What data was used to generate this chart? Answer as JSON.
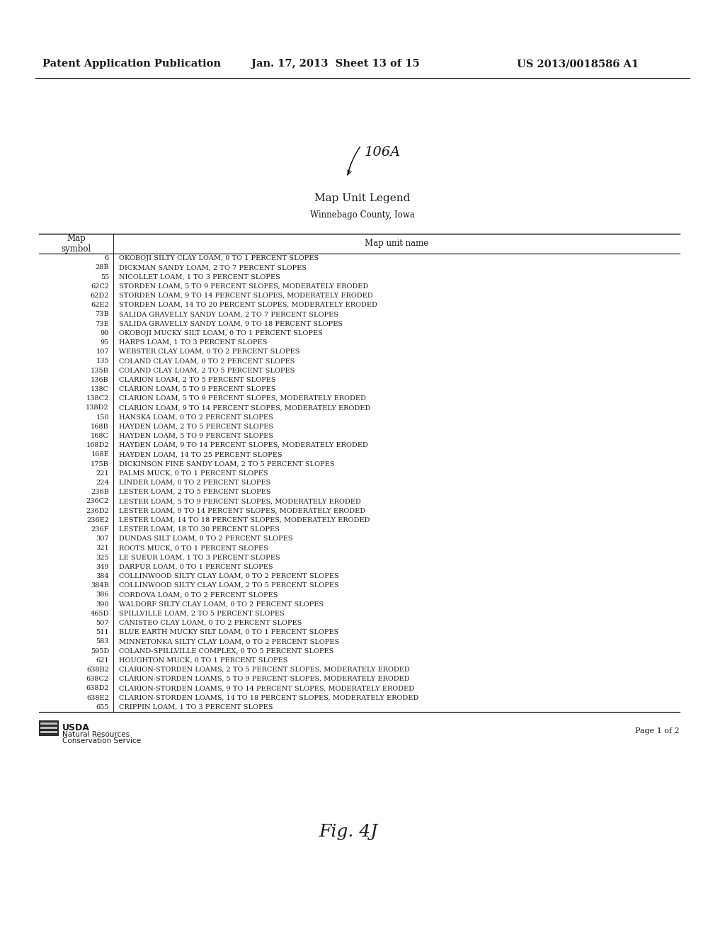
{
  "header_left": "Patent Application Publication",
  "header_middle": "Jan. 17, 2013  Sheet 13 of 15",
  "header_right": "US 2013/0018586 A1",
  "label_106A": "106A",
  "title": "Map Unit Legend",
  "subtitle": "Winnebago County, Iowa",
  "col1_header": "Map\nsymbol",
  "col2_header": "Map unit name",
  "table_data": [
    [
      "6",
      "OKOBOJI SILTY CLAY LOAM, 0 TO 1 PERCENT SLOPES"
    ],
    [
      "28B",
      "DICKMAN SANDY LOAM, 2 TO 7 PERCENT SLOPES"
    ],
    [
      "55",
      "NICOLLET LOAM, 1 TO 3 PERCENT SLOPES"
    ],
    [
      "62C2",
      "STORDEN LOAM, 5 TO 9 PERCENT SLOPES, MODERATELY ERODED"
    ],
    [
      "62D2",
      "STORDEN LOAM, 9 TO 14 PERCENT SLOPES, MODERATELY ERODED"
    ],
    [
      "62E2",
      "STORDEN LOAM, 14 TO 20 PERCENT SLOPES, MODERATELY ERODED"
    ],
    [
      "73B",
      "SALIDA GRAVELLY SANDY LOAM, 2 TO 7 PERCENT SLOPES"
    ],
    [
      "73E",
      "SALIDA GRAVELLY SANDY LOAM, 9 TO 18 PERCENT SLOPES"
    ],
    [
      "90",
      "OKOBOJI MUCKY SILT LOAM, 0 TO 1 PERCENT SLOPES"
    ],
    [
      "95",
      "HARPS LOAM, 1 TO 3 PERCENT SLOPES"
    ],
    [
      "107",
      "WEBSTER CLAY LOAM, 0 TO 2 PERCENT SLOPES"
    ],
    [
      "135",
      "COLAND CLAY LOAM, 0 TO 2 PERCENT SLOPES"
    ],
    [
      "135B",
      "COLAND CLAY LOAM, 2 TO 5 PERCENT SLOPES"
    ],
    [
      "136B",
      "CLARION LOAM, 2 TO 5 PERCENT SLOPES"
    ],
    [
      "138C",
      "CLARION LOAM, 5 TO 9 PERCENT SLOPES"
    ],
    [
      "138C2",
      "CLARION LOAM, 5 TO 9 PERCENT SLOPES, MODERATELY ERODED"
    ],
    [
      "138D2",
      "CLARION LOAM, 9 TO 14 PERCENT SLOPES, MODERATELY ERODED"
    ],
    [
      "150",
      "HANSKA LOAM, 0 TO 2 PERCENT SLOPES"
    ],
    [
      "168B",
      "HAYDEN LOAM, 2 TO 5 PERCENT SLOPES"
    ],
    [
      "168C",
      "HAYDEN LOAM, 5 TO 9 PERCENT SLOPES"
    ],
    [
      "168D2",
      "HAYDEN LOAM, 9 TO 14 PERCENT SLOPES, MODERATELY ERODED"
    ],
    [
      "168E",
      "HAYDEN LOAM, 14 TO 25 PERCENT SLOPES"
    ],
    [
      "175B",
      "DICKINSON FINE SANDY LOAM, 2 TO 5 PERCENT SLOPES"
    ],
    [
      "221",
      "PALMS MUCK, 0 TO 1 PERCENT SLOPES"
    ],
    [
      "224",
      "LINDER LOAM, 0 TO 2 PERCENT SLOPES"
    ],
    [
      "236B",
      "LESTER LOAM, 2 TO 5 PERCENT SLOPES"
    ],
    [
      "236C2",
      "LESTER LOAM, 5 TO 9 PERCENT SLOPES, MODERATELY ERODED"
    ],
    [
      "236D2",
      "LESTER LOAM, 9 TO 14 PERCENT SLOPES, MODERATELY ERODED"
    ],
    [
      "236E2",
      "LESTER LOAM, 14 TO 18 PERCENT SLOPES, MODERATELY ERODED"
    ],
    [
      "236F",
      "LESTER LOAM, 18 TO 30 PERCENT SLOPES"
    ],
    [
      "307",
      "DUNDAS SILT LOAM, 0 TO 2 PERCENT SLOPES"
    ],
    [
      "321",
      "ROOTS MUCK, 0 TO 1 PERCENT SLOPES"
    ],
    [
      "325",
      "LE SUEUR LOAM, 1 TO 3 PERCENT SLOPES"
    ],
    [
      "349",
      "DARFUR LOAM, 0 TO 1 PERCENT SLOPES"
    ],
    [
      "384",
      "COLLINWOOD SILTY CLAY LOAM, 0 TO 2 PERCENT SLOPES"
    ],
    [
      "384B",
      "COLLINWOOD SILTY CLAY LOAM, 2 TO 5 PERCENT SLOPES"
    ],
    [
      "386",
      "CORDOVA LOAM, 0 TO 2 PERCENT SLOPES"
    ],
    [
      "390",
      "WALDORF SILTY CLAY LOAM, 0 TO 2 PERCENT SLOPES"
    ],
    [
      "465D",
      "SPILLVILLE LOAM, 2 TO 5 PERCENT SLOPES"
    ],
    [
      "507",
      "CANISTEO CLAY LOAM, 0 TO 2 PERCENT SLOPES"
    ],
    [
      "511",
      "BLUE EARTH MUCKY SILT LOAM, 0 TO 1 PERCENT SLOPES"
    ],
    [
      "583",
      "MINNETONKA SILTY CLAY LOAM, 0 TO 2 PERCENT SLOPES"
    ],
    [
      "595D",
      "COLAND-SPILLVILLE COMPLEX, 0 TO 5 PERCENT SLOPES"
    ],
    [
      "621",
      "HOUGHTON MUCK, 0 TO 1 PERCENT SLOPES"
    ],
    [
      "638B2",
      "CLARION-STORDEN LOAMS, 2 TO 5 PERCENT SLOPES, MODERATELY ERODED"
    ],
    [
      "638C2",
      "CLARION-STORDEN LOAMS, 5 TO 9 PERCENT SLOPES, MODERATELY ERODED"
    ],
    [
      "638D2",
      "CLARION-STORDEN LOAMS, 9 TO 14 PERCENT SLOPES, MODERATELY ERODED"
    ],
    [
      "638E2",
      "CLARION-STORDEN LOAMS, 14 TO 18 PERCENT SLOPES, MODERATELY ERODED"
    ],
    [
      "655",
      "CRIPPIN LOAM, 1 TO 3 PERCENT SLOPES"
    ]
  ],
  "footer_line1": "Natural Resources",
  "footer_line2": "Conservation Service",
  "page_text": "Page 1 of 2",
  "fig_label": "Fig. 4J",
  "bg_color": "#ffffff",
  "text_color": "#1a1a1a",
  "header_font_size": 10.5,
  "title_font_size": 11,
  "subtitle_font_size": 8.5,
  "table_font_size": 7.0,
  "col_header_font_size": 8.5,
  "usda_label": "USDA"
}
